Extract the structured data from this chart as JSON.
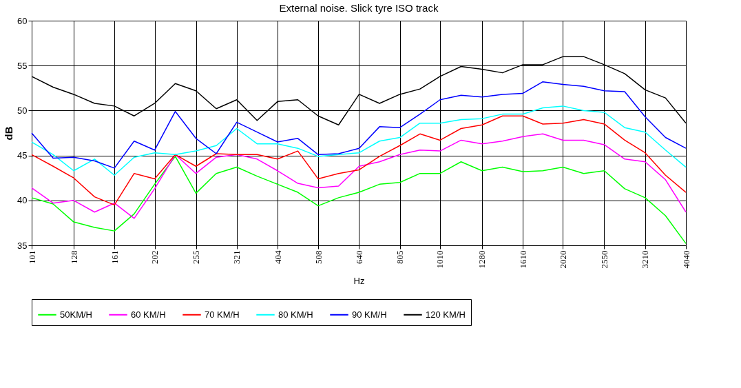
{
  "chart_data": {
    "type": "line",
    "title": "External noise. Slick tyre  ISO track",
    "xlabel": "Hz",
    "ylabel": "dB",
    "log": "x",
    "grid": true,
    "legend": "bottom",
    "marker": "none",
    "line_style": "solid",
    "xlim": [
      101,
      4040
    ],
    "xticks": [
      101,
      128,
      161,
      202,
      255,
      321,
      404,
      508,
      640,
      805,
      1010,
      1280,
      1610,
      2020,
      2550,
      3210,
      4040
    ],
    "ylim": [
      35,
      60
    ],
    "yticks": [
      35,
      40,
      45,
      50,
      55,
      60
    ],
    "x": [
      101,
      114,
      128,
      144,
      161,
      180,
      202,
      227,
      255,
      286,
      321,
      360,
      404,
      453,
      508,
      570,
      640,
      718,
      805,
      902,
      1010,
      1137,
      1280,
      1436,
      1610,
      1803,
      2020,
      2270,
      2550,
      2861,
      3210,
      3601,
      4040
    ],
    "series": [
      {
        "name": "50KM/H",
        "color": "#00ff00",
        "values": [
          40.3,
          39.6,
          37.6,
          37.0,
          36.6,
          38.5,
          41.8,
          44.9,
          40.8,
          43.0,
          43.7,
          42.7,
          41.8,
          40.9,
          39.4,
          40.3,
          40.9,
          41.8,
          42.0,
          43.0,
          43.0,
          44.3,
          43.3,
          43.7,
          43.2,
          43.3,
          43.7,
          43.0,
          43.3,
          41.3,
          40.3,
          38.3,
          35.2
        ]
      },
      {
        "name": "60 KM/H",
        "color": "#ff00ff",
        "values": [
          41.4,
          39.7,
          40.0,
          38.7,
          39.7,
          38.0,
          41.3,
          45.1,
          43.0,
          44.8,
          45.1,
          44.6,
          43.3,
          41.9,
          41.4,
          41.6,
          43.8,
          44.3,
          45.1,
          45.6,
          45.5,
          46.7,
          46.3,
          46.6,
          47.1,
          47.4,
          46.7,
          46.7,
          46.2,
          44.6,
          44.3,
          42.3,
          38.7
        ]
      },
      {
        "name": "70 KM/H",
        "color": "#ff0000",
        "values": [
          45.1,
          43.8,
          42.5,
          40.4,
          39.5,
          43.0,
          42.4,
          45.1,
          43.8,
          45.2,
          45.1,
          45.1,
          44.6,
          45.5,
          42.4,
          43.0,
          43.4,
          44.9,
          46.1,
          47.4,
          46.7,
          48.0,
          48.4,
          49.4,
          49.4,
          48.5,
          48.6,
          49.0,
          48.5,
          46.7,
          45.3,
          42.8,
          40.9
        ]
      },
      {
        "name": "80 KM/H",
        "color": "#00ffff",
        "values": [
          46.5,
          45.1,
          43.3,
          44.6,
          42.8,
          44.8,
          45.3,
          45.1,
          45.5,
          46.1,
          48.0,
          46.3,
          46.3,
          45.8,
          44.9,
          45.1,
          45.3,
          46.6,
          47.0,
          48.6,
          48.6,
          49.0,
          49.1,
          49.6,
          49.6,
          50.3,
          50.5,
          50.0,
          49.8,
          48.1,
          47.6,
          45.6,
          43.7
        ]
      },
      {
        "name": "90 KM/H",
        "color": "#0000ff",
        "values": [
          47.5,
          44.7,
          44.8,
          44.4,
          43.6,
          46.6,
          45.6,
          49.9,
          46.9,
          45.2,
          48.7,
          47.6,
          46.5,
          46.9,
          45.1,
          45.2,
          45.8,
          48.2,
          48.1,
          49.6,
          51.2,
          51.7,
          51.5,
          51.8,
          51.9,
          53.2,
          52.9,
          52.7,
          52.2,
          52.1,
          49.3,
          47.0,
          45.8
        ]
      },
      {
        "name": "120 KM/H",
        "color": "#000000",
        "values": [
          53.8,
          52.6,
          51.8,
          50.8,
          50.5,
          49.4,
          50.8,
          53.0,
          52.2,
          50.2,
          51.2,
          48.9,
          51.0,
          51.2,
          49.4,
          48.4,
          51.8,
          50.8,
          51.8,
          52.4,
          53.8,
          54.9,
          54.6,
          54.2,
          55.1,
          55.1,
          56.0,
          56.0,
          55.1,
          54.1,
          52.3,
          51.4,
          48.6
        ]
      }
    ]
  }
}
